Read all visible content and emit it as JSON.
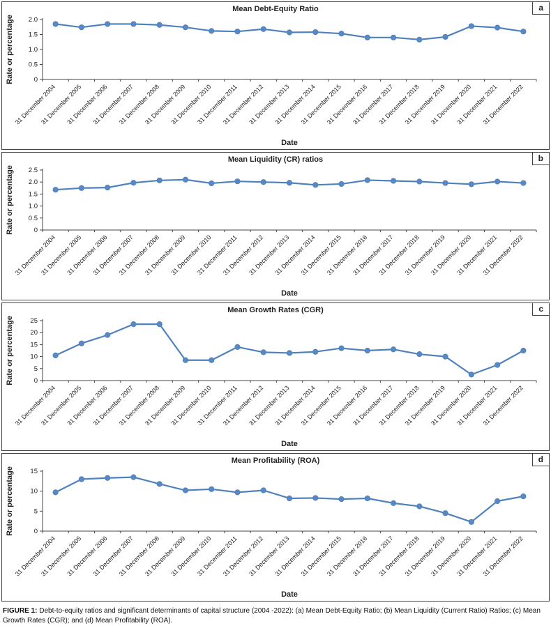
{
  "colors": {
    "line": "#4F81BD",
    "marker": "#5A88C2",
    "axis": "#444444"
  },
  "caption": {
    "label": "FIGURE 1:",
    "text": "Debt-to-equity ratios and significant determinants of capital structure (2004 -2022): (a) Mean Debt-Equity Ratio; (b) Mean Liquidity (Current Ratio) Ratios; (c) Mean Growth Rates (CGR); and (d) Mean Profitability (ROA)."
  },
  "chart_data": [
    {
      "type": "line",
      "panel_label": "a",
      "title": "Mean Debt-Equity Ratio",
      "xlabel": "Date",
      "ylabel": "Rate or percentage",
      "ylim": [
        0,
        2.0
      ],
      "yticks": [
        "0",
        "0.5",
        "1.0",
        "1.5",
        "2.0"
      ],
      "ytick_values": [
        0,
        0.5,
        1.0,
        1.5,
        2.0
      ],
      "grid": false,
      "legend": "none",
      "categories": [
        "31 December 2004",
        "31 December 2005",
        "31 December 2006",
        "31 December 2007",
        "31 December 2008",
        "31 December 2009",
        "31 December 2010",
        "31 December 2011",
        "31 December 2012",
        "31 December 2013",
        "31 December 2014",
        "31 December 2015",
        "31 December 2016",
        "31 December 2017",
        "31 December 2018",
        "31 December 2019",
        "31 December 2020",
        "31 December 2021",
        "31 December 2022"
      ],
      "values": [
        1.85,
        1.74,
        1.85,
        1.85,
        1.82,
        1.74,
        1.62,
        1.6,
        1.68,
        1.57,
        1.58,
        1.53,
        1.4,
        1.4,
        1.33,
        1.42,
        1.78,
        1.73,
        1.6
      ]
    },
    {
      "type": "line",
      "panel_label": "b",
      "title": "Mean Liquidity (CR) ratios",
      "xlabel": "Date",
      "ylabel": "Rate or percentage",
      "ylim": [
        0,
        2.5
      ],
      "yticks": [
        "0",
        "0.5",
        "1.0",
        "1.5",
        "2.0",
        "2.5"
      ],
      "ytick_values": [
        0,
        0.5,
        1.0,
        1.5,
        2.0,
        2.5
      ],
      "grid": false,
      "legend": "none",
      "categories": [
        "31 December 2004",
        "31 December 2005",
        "31 December 2006",
        "31 December 2007",
        "31 December 2008",
        "31 December 2009",
        "31 December 2010",
        "31 December 2011",
        "31 December 2012",
        "31 December 2013",
        "31 December 2014",
        "31 December 2015",
        "31 December 2016",
        "31 December 2017",
        "31 December 2018",
        "31 December 2019",
        "31 December 2020",
        "31 December 2021",
        "31 December 2022"
      ],
      "values": [
        1.68,
        1.75,
        1.77,
        1.97,
        2.07,
        2.1,
        1.95,
        2.03,
        2.0,
        1.97,
        1.88,
        1.92,
        2.08,
        2.05,
        2.02,
        1.96,
        1.91,
        2.02,
        1.96
      ]
    },
    {
      "type": "line",
      "panel_label": "c",
      "title": "Mean Growth Rates (CGR)",
      "xlabel": "Date",
      "ylabel": "Rate or percentage",
      "ylim": [
        0,
        25
      ],
      "yticks": [
        "0",
        "5",
        "10",
        "15",
        "20",
        "25"
      ],
      "ytick_values": [
        0,
        5,
        10,
        15,
        20,
        25
      ],
      "grid": false,
      "legend": "none",
      "categories": [
        "31 December 2004",
        "31 December 2005",
        "31 December 2006",
        "31 December 2007",
        "31 December 2008",
        "31 December 2009",
        "31 December 2010",
        "31 December 2011",
        "31 December 2012",
        "31 December 2013",
        "31 December 2014",
        "31 December 2015",
        "31 December 2016",
        "31 December 2017",
        "31 December 2018",
        "31 December 2019",
        "31 December 2020",
        "31 December 2021",
        "31 December 2022"
      ],
      "values": [
        10.5,
        15.5,
        19.0,
        23.5,
        23.5,
        8.5,
        8.5,
        14.0,
        11.8,
        11.5,
        12.0,
        13.5,
        12.5,
        13.0,
        11.0,
        10.0,
        2.5,
        6.5,
        12.5
      ]
    },
    {
      "type": "line",
      "panel_label": "d",
      "title": "Mean Profitability (ROA)",
      "xlabel": "Date",
      "ylabel": "Rate or percentage",
      "ylim": [
        0,
        15
      ],
      "yticks": [
        "0",
        "5",
        "10",
        "15"
      ],
      "ytick_values": [
        0,
        5,
        10,
        15
      ],
      "grid": false,
      "legend": "none",
      "categories": [
        "31 December 2004",
        "31 December 2005",
        "31 December 2006",
        "31 December 2007",
        "31 December 2008",
        "31 December 2009",
        "31 December 2010",
        "31 December 2011",
        "31 December 2012",
        "31 December 2013",
        "31 December 2014",
        "31 December 2015",
        "31 December 2016",
        "31 December 2017",
        "31 December 2018",
        "31 December 2019",
        "31 December 2020",
        "31 December 2021",
        "31 December 2022"
      ],
      "values": [
        9.7,
        13.0,
        13.3,
        13.5,
        11.8,
        10.2,
        10.5,
        9.7,
        10.2,
        8.2,
        8.3,
        8.0,
        8.2,
        7.0,
        6.2,
        4.5,
        2.3,
        7.5,
        8.7
      ]
    }
  ]
}
